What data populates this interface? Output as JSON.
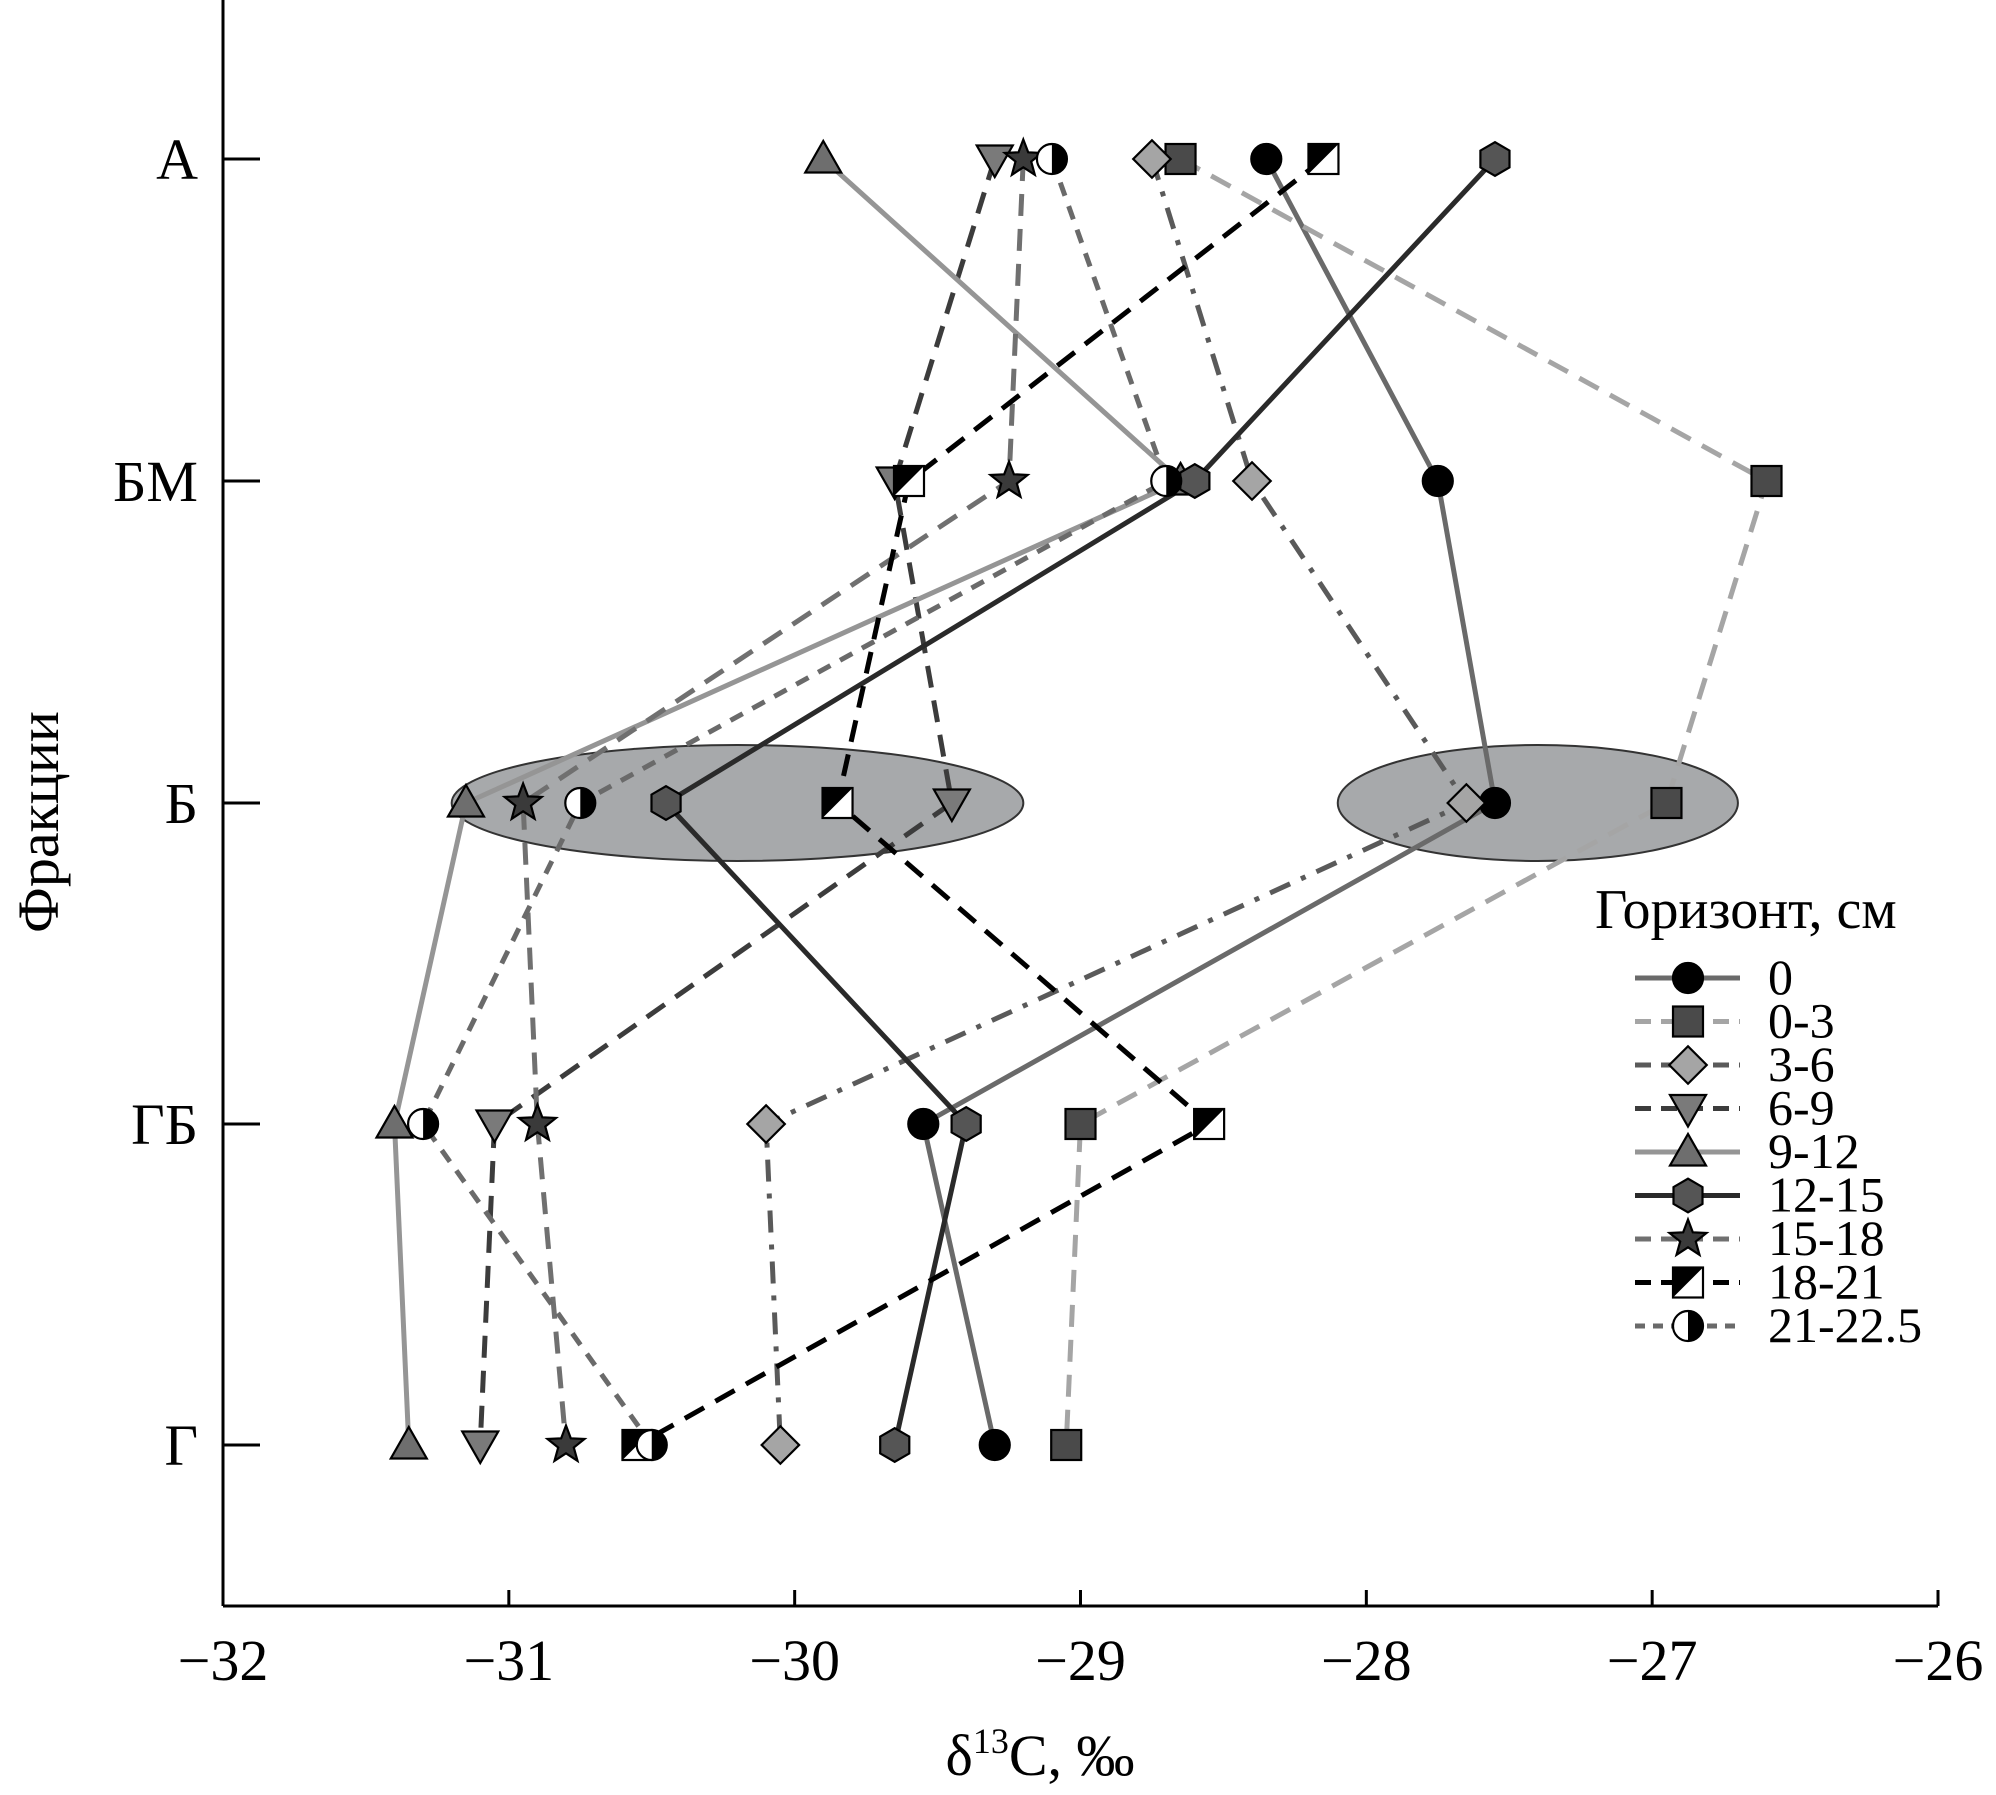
{
  "chart_data": {
    "type": "scatter",
    "xlabel": "δ13C, ‰",
    "ylabel": "Фракции",
    "xlim": [
      -32,
      -26
    ],
    "xticks": [
      -32,
      -31,
      -30,
      -29,
      -28,
      -27,
      -26
    ],
    "xtick_labels": [
      "−32",
      "−31",
      "−30",
      "−29",
      "−28",
      "−27",
      "−26"
    ],
    "categories": [
      "А",
      "БМ",
      "Б",
      "ГБ",
      "Г"
    ],
    "legend_title": "Горизонт, см",
    "legend_position": "right",
    "highlight_regions": [
      {
        "category": "Б",
        "x_range": [
          -31.2,
          -29.2
        ],
        "color": "#a7a9ab"
      },
      {
        "category": "Б",
        "x_range": [
          -28.1,
          -26.7
        ],
        "color": "#a7a9ab"
      }
    ],
    "series": [
      {
        "name": "0",
        "marker": "circle",
        "line_color": "#6a6a6a",
        "dash": "solid",
        "fill": "#000000",
        "values": [
          -28.35,
          -27.75,
          -27.55,
          -29.55,
          -29.3
        ]
      },
      {
        "name": "0-3",
        "marker": "square",
        "line_color": "#a5a5a5",
        "dash": "dash",
        "fill": "#4a4a4a",
        "values": [
          -28.65,
          -26.6,
          -26.95,
          -29.0,
          -29.05
        ]
      },
      {
        "name": "3-6",
        "marker": "diamond",
        "line_color": "#5a5a5a",
        "dash": "dashdot",
        "fill": "#a5a5a5",
        "values": [
          -28.75,
          -28.4,
          -27.65,
          -30.1,
          -30.05
        ]
      },
      {
        "name": "6-9",
        "marker": "triangle-down",
        "line_color": "#3c3c3c",
        "dash": "dash",
        "fill": "#7a7a7a",
        "values": [
          -29.3,
          -29.65,
          -29.45,
          -31.05,
          -31.1
        ]
      },
      {
        "name": "9-12",
        "marker": "triangle-up",
        "line_color": "#959595",
        "dash": "solid",
        "fill": "#6e6e6e",
        "values": [
          -29.9,
          -28.65,
          -31.15,
          -31.4,
          -31.35
        ]
      },
      {
        "name": "12-15",
        "marker": "hexagon",
        "line_color": "#2a2a2a",
        "dash": "solid",
        "fill": "#555555",
        "values": [
          -27.55,
          -28.6,
          -30.45,
          -29.4,
          -29.65
        ]
      },
      {
        "name": "15-18",
        "marker": "star",
        "line_color": "#707070",
        "dash": "dash",
        "fill": "#3a3a3a",
        "values": [
          -29.2,
          -29.25,
          -30.95,
          -30.9,
          -30.8
        ]
      },
      {
        "name": "18-21",
        "marker": "half-square",
        "line_color": "#000000",
        "dash": "dash",
        "fill": "#000000",
        "values": [
          -28.15,
          -29.6,
          -29.85,
          -28.55,
          -30.55
        ]
      },
      {
        "name": "21-22.5",
        "marker": "half-circle",
        "line_color": "#6a6a6a",
        "dash": "dot",
        "fill": "#000000",
        "values": [
          -29.1,
          -28.7,
          -30.75,
          -31.3,
          -30.5
        ]
      }
    ]
  }
}
